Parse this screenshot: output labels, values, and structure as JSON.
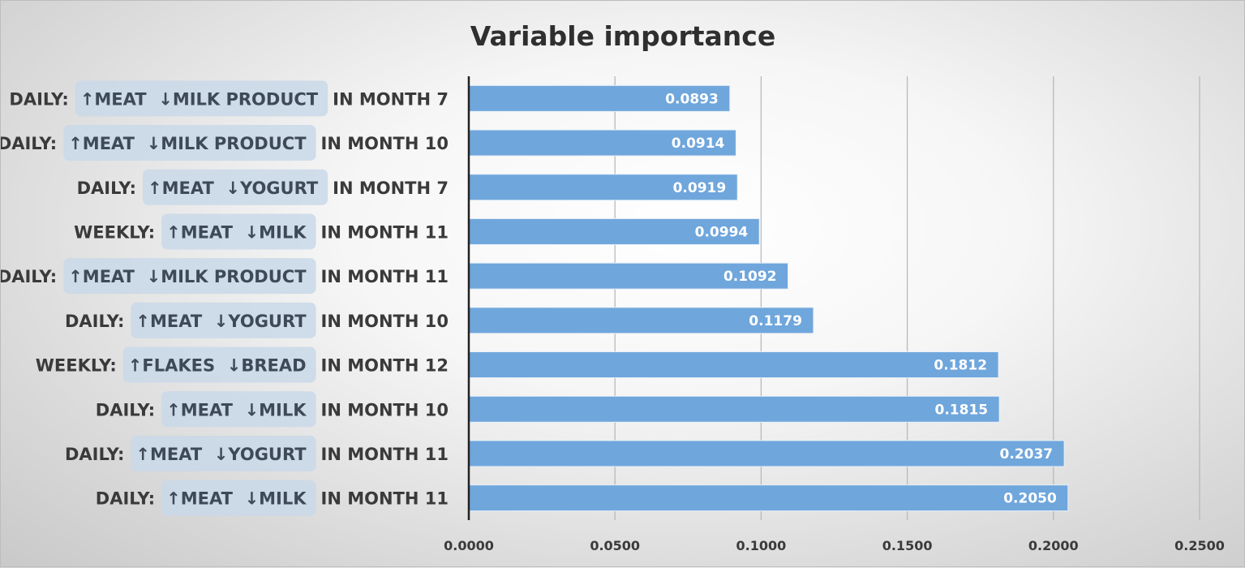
{
  "chart_data": {
    "type": "bar",
    "orientation": "horizontal",
    "title": "Variable importance",
    "xlabel": "",
    "ylabel": "",
    "xlim": [
      0,
      0.25
    ],
    "x_ticks": [
      "0.0000",
      "0.0500",
      "0.1000",
      "0.1500",
      "0.2000",
      "0.2500"
    ],
    "grid": true,
    "bar_color": "#6fa6dc",
    "highlight_color": "#c9d8e8",
    "categories": [
      {
        "prefix": "DAILY:",
        "highlight": "↑MEAT  ↓MILK PRODUCT",
        "suffix": "IN MONTH 7",
        "value": 0.0893,
        "label": "0.0893"
      },
      {
        "prefix": "DAILY:",
        "highlight": "↑MEAT  ↓MILK PRODUCT",
        "suffix": "IN MONTH 10",
        "value": 0.0914,
        "label": "0.0914"
      },
      {
        "prefix": "DAILY:",
        "highlight": "↑MEAT  ↓YOGURT",
        "suffix": "IN MONTH 7",
        "value": 0.0919,
        "label": "0.0919"
      },
      {
        "prefix": "WEEKLY:",
        "highlight": "↑MEAT  ↓MILK",
        "suffix": "IN MONTH 11",
        "value": 0.0994,
        "label": "0.0994"
      },
      {
        "prefix": "DAILY:",
        "highlight": "↑MEAT  ↓MILK PRODUCT",
        "suffix": "IN MONTH 11",
        "value": 0.1092,
        "label": "0.1092"
      },
      {
        "prefix": "DAILY:",
        "highlight": "↑MEAT  ↓YOGURT",
        "suffix": "IN MONTH 10",
        "value": 0.1179,
        "label": "0.1179"
      },
      {
        "prefix": "WEEKLY:",
        "highlight": "↑FLAKES  ↓BREAD",
        "suffix": "IN MONTH 12",
        "value": 0.1812,
        "label": "0.1812"
      },
      {
        "prefix": "DAILY:",
        "highlight": "↑MEAT  ↓MILK",
        "suffix": "IN MONTH 10",
        "value": 0.1815,
        "label": "0.1815"
      },
      {
        "prefix": "DAILY:",
        "highlight": "↑MEAT  ↓YOGURT",
        "suffix": "IN MONTH 11",
        "value": 0.2037,
        "label": "0.2037"
      },
      {
        "prefix": "DAILY:",
        "highlight": "↑MEAT  ↓MILK",
        "suffix": "IN MONTH 11",
        "value": 0.205,
        "label": "0.2050"
      }
    ]
  }
}
